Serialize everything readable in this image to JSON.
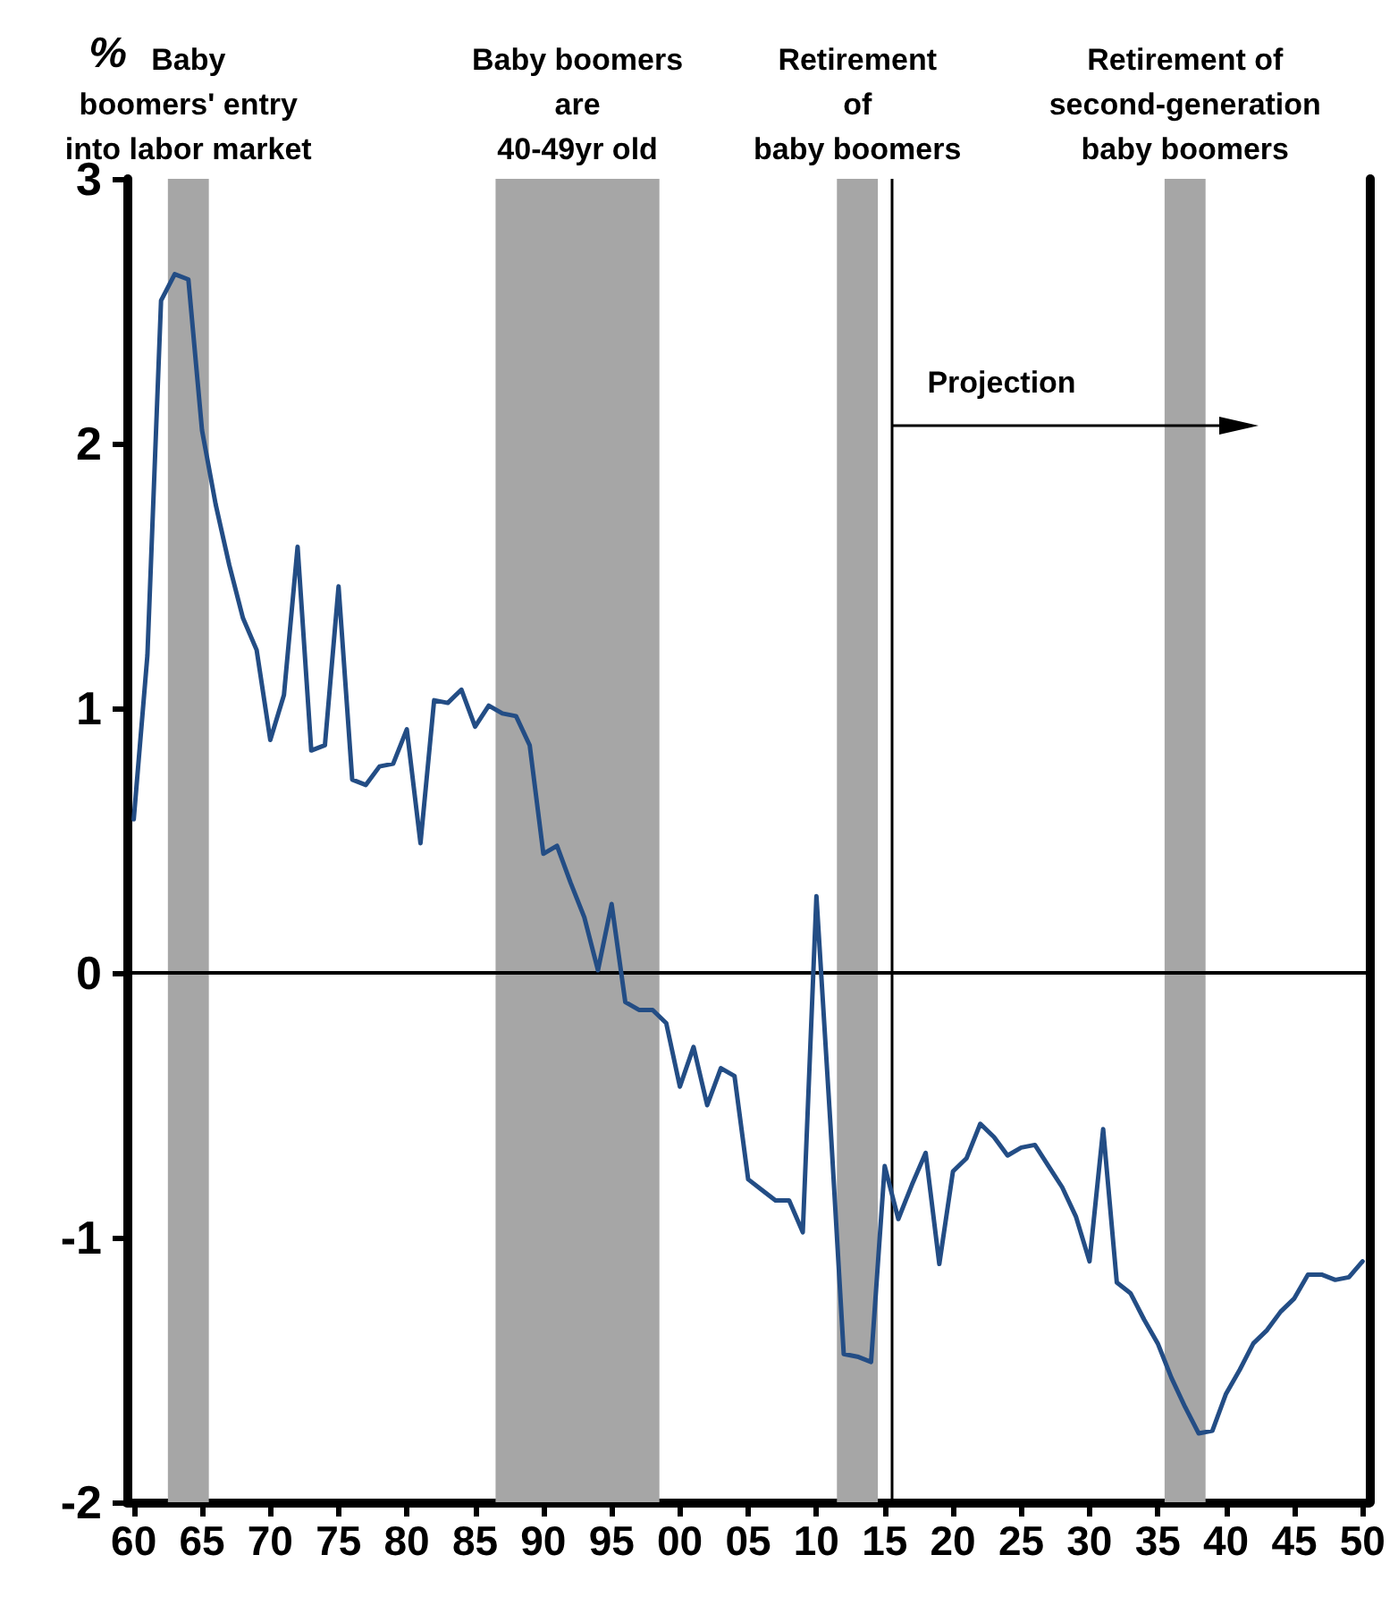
{
  "chart_data": {
    "type": "line",
    "ylabel": "%",
    "x": [
      1960,
      1961,
      1962,
      1963,
      1964,
      1965,
      1966,
      1967,
      1968,
      1969,
      1970,
      1971,
      1972,
      1973,
      1974,
      1975,
      1976,
      1977,
      1978,
      1979,
      1980,
      1981,
      1982,
      1983,
      1984,
      1985,
      1986,
      1987,
      1988,
      1989,
      1990,
      1991,
      1992,
      1993,
      1994,
      1995,
      1996,
      1997,
      1998,
      1999,
      2000,
      2001,
      2002,
      2003,
      2004,
      2005,
      2006,
      2007,
      2008,
      2009,
      2010,
      2011,
      2012,
      2013,
      2014,
      2015,
      2016,
      2017,
      2018,
      2019,
      2020,
      2021,
      2022,
      2023,
      2024,
      2025,
      2026,
      2027,
      2028,
      2029,
      2030,
      2031,
      2032,
      2033,
      2034,
      2035,
      2036,
      2037,
      2038,
      2039,
      2040,
      2041,
      2042,
      2043,
      2044,
      2045,
      2046,
      2047,
      2048,
      2049,
      2050
    ],
    "series": [
      {
        "color": "#234d85",
        "values": [
          0.58,
          1.2,
          2.54,
          2.64,
          2.62,
          2.05,
          1.77,
          1.54,
          1.34,
          1.22,
          0.88,
          1.05,
          1.61,
          0.84,
          0.86,
          1.46,
          0.73,
          0.71,
          0.78,
          0.79,
          0.92,
          0.49,
          1.03,
          1.02,
          1.07,
          0.93,
          1.01,
          0.98,
          0.97,
          0.86,
          0.45,
          0.48,
          0.34,
          0.21,
          0.01,
          0.26,
          -0.11,
          -0.14,
          -0.14,
          -0.19,
          -0.43,
          -0.28,
          -0.5,
          -0.36,
          -0.39,
          -0.78,
          -0.82,
          -0.86,
          -0.86,
          -0.98,
          0.29,
          -0.55,
          -1.44,
          -1.45,
          -1.47,
          -0.73,
          -0.93,
          -0.8,
          -0.68,
          -1.1,
          -0.75,
          -0.7,
          -0.57,
          -0.62,
          -0.69,
          -0.66,
          -0.65,
          -0.73,
          -0.81,
          -0.92,
          -1.09,
          -0.59,
          -1.17,
          -1.21,
          -1.31,
          -1.4,
          -1.53,
          -1.64,
          -1.74,
          -1.73,
          -1.59,
          -1.5,
          -1.4,
          -1.35,
          -1.28,
          -1.23,
          -1.14,
          -1.14,
          -1.16,
          -1.15,
          -1.09
        ]
      }
    ],
    "xlim": [
      1959.5,
      2050.5
    ],
    "xticks": [
      {
        "value": 1960,
        "label": "60"
      },
      {
        "value": 1965,
        "label": "65"
      },
      {
        "value": 1970,
        "label": "70"
      },
      {
        "value": 1975,
        "label": "75"
      },
      {
        "value": 1980,
        "label": "80"
      },
      {
        "value": 1985,
        "label": "85"
      },
      {
        "value": 1990,
        "label": "90"
      },
      {
        "value": 1995,
        "label": "95"
      },
      {
        "value": 2000,
        "label": "00"
      },
      {
        "value": 2005,
        "label": "05"
      },
      {
        "value": 2010,
        "label": "10"
      },
      {
        "value": 2015,
        "label": "15"
      },
      {
        "value": 2020,
        "label": "20"
      },
      {
        "value": 2025,
        "label": "25"
      },
      {
        "value": 2030,
        "label": "30"
      },
      {
        "value": 2035,
        "label": "35"
      },
      {
        "value": 2040,
        "label": "40"
      },
      {
        "value": 2045,
        "label": "45"
      },
      {
        "value": 2050,
        "label": "50"
      }
    ],
    "ylim": [
      -2,
      3
    ],
    "yticks": [
      -2,
      -1,
      0,
      1,
      2,
      3
    ],
    "marker": "none",
    "line_style": "solid",
    "bands": [
      {
        "axis": "x",
        "from": 1962.5,
        "to": 1965.5,
        "label": "Baby\nboomers' entry\ninto labor market",
        "color": "#a6a6a6"
      },
      {
        "axis": "x",
        "from": 1986.5,
        "to": 1998.5,
        "label": "Baby boomers\nare\n40-49yr old",
        "color": "#a6a6a6"
      },
      {
        "axis": "x",
        "from": 2011.5,
        "to": 2014.5,
        "label": "Retirement\nof\nbaby boomers",
        "color": "#a6a6a6"
      },
      {
        "axis": "x",
        "from": 2035.5,
        "to": 2038.5,
        "label": "Retirement of\nsecond-generation\nbaby boomers",
        "color": "#a6a6a6"
      }
    ],
    "ref_lines": [
      {
        "axis": "y",
        "value": 0,
        "color": "#000000"
      },
      {
        "axis": "x",
        "value": 2015.5,
        "color": "#000000"
      }
    ],
    "annotations": [
      {
        "text": "Projection",
        "x": 2015.5,
        "y": 2.07
      }
    ]
  }
}
